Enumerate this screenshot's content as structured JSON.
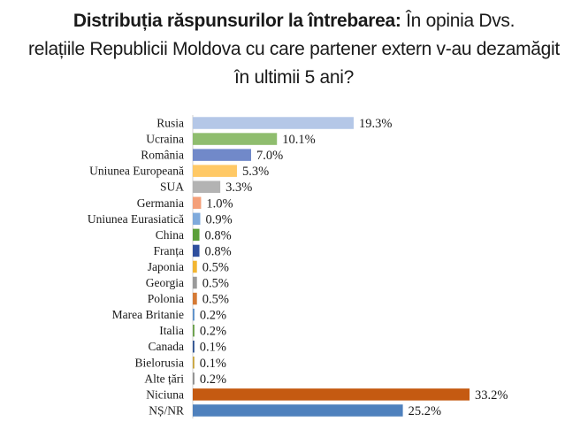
{
  "title": {
    "bold": "Distribuția răspunsurilor la întrebarea:",
    "line1_rest": " În opinia Dvs.",
    "line2": "relațiile Republicii Moldova cu care partener extern v-au dezamăgit",
    "line3": "în ultimii 5 ani?"
  },
  "chart_data": {
    "type": "bar",
    "orientation": "horizontal",
    "xlim": [
      0,
      35
    ],
    "grid": false,
    "legend": "none",
    "categories": [
      "Rusia",
      "Ucraina",
      "România",
      "Uniunea Europeană",
      "SUA",
      "Germania",
      "Uniunea Eurasiatică",
      "China",
      "Franța",
      "Japonia",
      "Georgia",
      "Polonia",
      "Marea Britanie",
      "Italia",
      "Canada",
      "Bielorusia",
      "Alte țări",
      "Niciuna",
      "NȘ/NR"
    ],
    "values": [
      19.3,
      10.1,
      7.0,
      5.3,
      3.3,
      1.0,
      0.9,
      0.8,
      0.8,
      0.5,
      0.5,
      0.5,
      0.2,
      0.2,
      0.1,
      0.1,
      0.2,
      33.2,
      25.2
    ],
    "value_labels": [
      "19.3%",
      "10.1%",
      "7.0%",
      "5.3%",
      "3.3%",
      "1.0%",
      "0.9%",
      "0.8%",
      "0.8%",
      "0.5%",
      "0.5%",
      "0.5%",
      "0.2%",
      "0.2%",
      "0.1%",
      "0.1%",
      "0.2%",
      "33.2%",
      "25.2%"
    ],
    "colors": [
      "#b4c7e7",
      "#8fbd6e",
      "#7189c9",
      "#ffc966",
      "#b3b3b3",
      "#f4a07a",
      "#7faadc",
      "#5b9f3a",
      "#2f4f9e",
      "#f2b632",
      "#9a9a9a",
      "#d57a35",
      "#5b8fc9",
      "#6aa04a",
      "#2b4f8f",
      "#c8a33a",
      "#909090",
      "#c55a11",
      "#4f81bd"
    ]
  }
}
